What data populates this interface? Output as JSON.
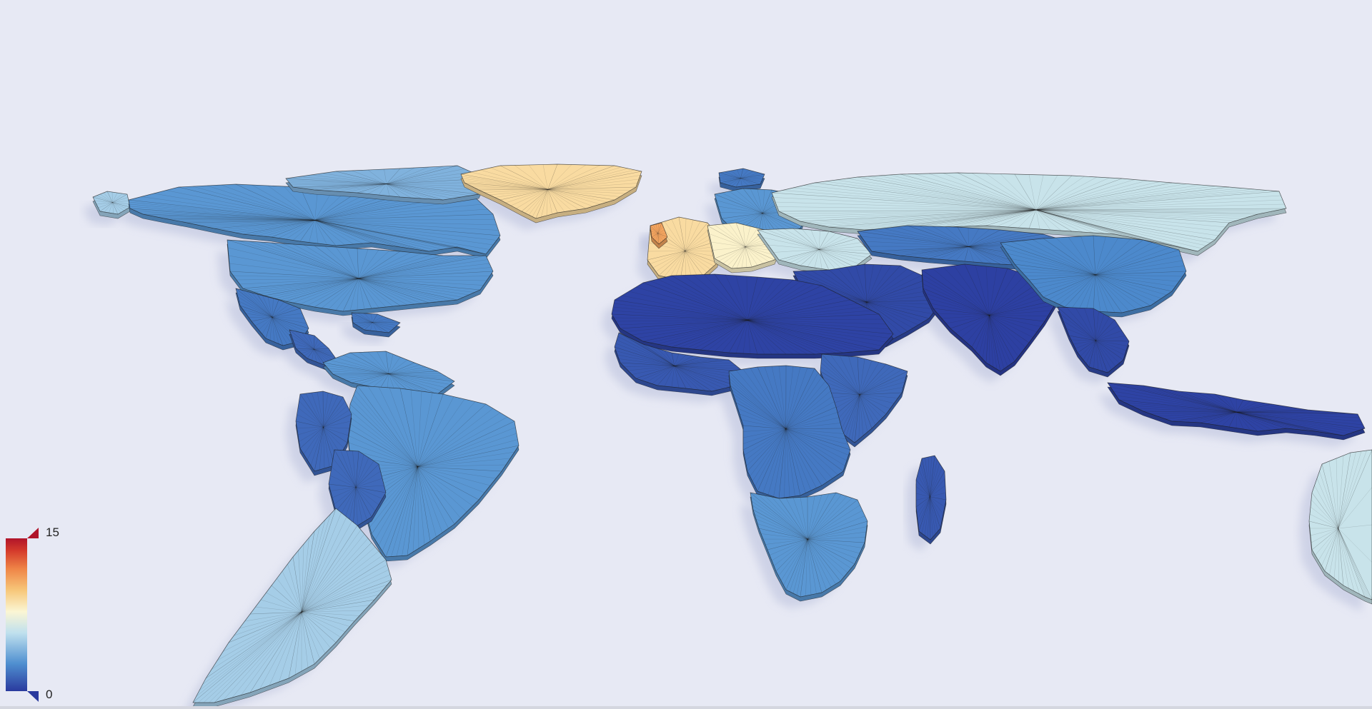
{
  "colorbar": {
    "max_label": "15",
    "min_label": "0",
    "max_value": 15,
    "min_value": 0,
    "colors": [
      "#2a3a9e",
      "#4f8fd0",
      "#bfe0ee",
      "#fbf6d4",
      "#f7c77a",
      "#ef8547",
      "#d43a2b",
      "#b0142a"
    ]
  },
  "palette": {
    "background": "#e7e9f4",
    "edge": "#1c1c1c",
    "shadow": "#b9c0dc"
  },
  "regions": [
    {
      "name": "alaska",
      "level": 5
    },
    {
      "name": "canada",
      "level": 3
    },
    {
      "name": "arctic-islands",
      "level": 4
    },
    {
      "name": "greenland",
      "level": 9
    },
    {
      "name": "usa",
      "level": 3
    },
    {
      "name": "mexico",
      "level": 2
    },
    {
      "name": "central-america",
      "level": 1.5
    },
    {
      "name": "caribbean",
      "level": 2
    },
    {
      "name": "south-america-north",
      "level": 3
    },
    {
      "name": "brazil",
      "level": 3
    },
    {
      "name": "peru",
      "level": 1.5
    },
    {
      "name": "bolivia",
      "level": 1.5
    },
    {
      "name": "argentina-chile",
      "level": 5
    },
    {
      "name": "iceland",
      "level": 2
    },
    {
      "name": "scandinavia",
      "level": 3
    },
    {
      "name": "western-europe",
      "level": 9
    },
    {
      "name": "central-europe",
      "level": 8
    },
    {
      "name": "uk-ireland",
      "level": 11
    },
    {
      "name": "eastern-europe",
      "level": 6
    },
    {
      "name": "russia",
      "level": 6
    },
    {
      "name": "central-asia",
      "level": 2
    },
    {
      "name": "middle-east",
      "level": 0.5
    },
    {
      "name": "south-asia",
      "level": 0.2
    },
    {
      "name": "china",
      "level": 2.5
    },
    {
      "name": "southeast-asia",
      "level": 0.5
    },
    {
      "name": "indonesia",
      "level": 0.3
    },
    {
      "name": "north-africa",
      "level": 0.3
    },
    {
      "name": "west-africa",
      "level": 1
    },
    {
      "name": "east-africa",
      "level": 1.5
    },
    {
      "name": "central-africa",
      "level": 2
    },
    {
      "name": "southern-africa",
      "level": 3
    },
    {
      "name": "madagascar",
      "level": 1
    },
    {
      "name": "australia",
      "level": 6
    }
  ]
}
